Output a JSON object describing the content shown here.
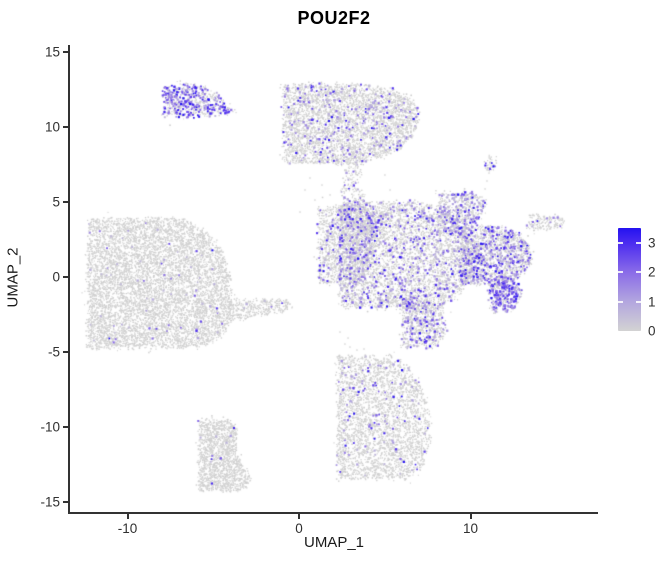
{
  "chart_data": {
    "type": "scatter",
    "title": "POU2F2",
    "xlabel": "UMAP_1",
    "ylabel": "UMAP_2",
    "xlim": [
      -13.4,
      17.4
    ],
    "ylim": [
      -15.7,
      15.5
    ],
    "grid": false,
    "background": "#ffffff",
    "x_ticks": [
      {
        "v": -10,
        "label": "-10"
      },
      {
        "v": 0,
        "label": "0"
      },
      {
        "v": 10,
        "label": "10"
      }
    ],
    "y_ticks": [
      {
        "v": 15,
        "label": "15"
      },
      {
        "v": 10,
        "label": "10"
      },
      {
        "v": 5,
        "label": "5"
      },
      {
        "v": 0,
        "label": "0"
      },
      {
        "v": -5,
        "label": "-5"
      },
      {
        "v": -10,
        "label": "-10"
      },
      {
        "v": -15,
        "label": "-15"
      }
    ],
    "legend_position": "right",
    "colorbar": {
      "min": 0,
      "max": 3.5,
      "tick_values": [
        0,
        1,
        2,
        3
      ],
      "tick_labels": [
        "0",
        "1",
        "2",
        "3"
      ],
      "low_color": "#D3D3D3",
      "high_color": "#2412F0",
      "ramp": [
        [
          0.0,
          "#D3D3D3"
        ],
        [
          0.286,
          "#B2A5DF"
        ],
        [
          0.571,
          "#8A6CE8"
        ],
        [
          0.857,
          "#4A2BF0"
        ],
        [
          1.0,
          "#2412F0"
        ]
      ]
    },
    "clusters": [
      {
        "name": "top-left-island-high-expression",
        "n": 620,
        "expr_frac": 0.45,
        "expr_pow": 0.9,
        "outline": [
          [
            -7.93,
            11.93
          ],
          [
            -7.41,
            12.53
          ],
          [
            -6.24,
            12.8
          ],
          [
            -5.19,
            12.47
          ],
          [
            -4.61,
            11.87
          ],
          [
            -3.72,
            11.05
          ],
          [
            -4.37,
            10.87
          ],
          [
            -5.54,
            10.73
          ],
          [
            -6.71,
            10.87
          ],
          [
            -7.7,
            11.33
          ]
        ]
      },
      {
        "name": "top-middle-large",
        "n": 3800,
        "expr_frac": 0.085,
        "expr_pow": 1.6,
        "outline": [
          [
            -0.93,
            10.6
          ],
          [
            -0.52,
            11.6
          ],
          [
            0.52,
            12.27
          ],
          [
            1.92,
            12.73
          ],
          [
            3.44,
            12.87
          ],
          [
            4.84,
            12.73
          ],
          [
            5.89,
            12.33
          ],
          [
            6.65,
            11.73
          ],
          [
            7.06,
            11.0
          ],
          [
            6.94,
            10.07
          ],
          [
            6.47,
            9.27
          ],
          [
            5.77,
            8.47
          ],
          [
            4.55,
            7.87
          ],
          [
            3.21,
            7.6
          ],
          [
            1.81,
            7.67
          ],
          [
            0.76,
            8.07
          ],
          [
            -0.23,
            8.73
          ],
          [
            -0.82,
            9.8
          ]
        ]
      },
      {
        "name": "neck-bridge",
        "n": 380,
        "expr_frac": 0.12,
        "expr_pow": 1.6,
        "outline": [
          [
            2.51,
            8.33
          ],
          [
            4.02,
            8.13
          ],
          [
            3.56,
            6.13
          ],
          [
            4.14,
            4.13
          ],
          [
            4.61,
            2.47
          ],
          [
            3.27,
            2.47
          ],
          [
            3.09,
            4.8
          ],
          [
            2.86,
            6.8
          ]
        ]
      },
      {
        "name": "central-left-lobe",
        "n": 1400,
        "expr_frac": 0.12,
        "expr_pow": 1.6,
        "outline": [
          [
            1.11,
            1.67
          ],
          [
            1.81,
            3.0
          ],
          [
            2.86,
            4.07
          ],
          [
            4.02,
            4.67
          ],
          [
            5.07,
            4.33
          ],
          [
            4.72,
            2.47
          ],
          [
            4.26,
            1.0
          ],
          [
            3.44,
            -0.4
          ],
          [
            2.39,
            -0.27
          ],
          [
            1.57,
            0.6
          ]
        ]
      },
      {
        "name": "central-main-body",
        "n": 4200,
        "expr_frac": 0.15,
        "expr_pow": 1.7,
        "outline": [
          [
            2.68,
            3.27
          ],
          [
            4.72,
            4.6
          ],
          [
            7.06,
            5.0
          ],
          [
            8.92,
            4.33
          ],
          [
            9.85,
            3.27
          ],
          [
            10.44,
            1.93
          ],
          [
            10.2,
            0.33
          ],
          [
            9.39,
            -1.0
          ],
          [
            8.34,
            -2.07
          ],
          [
            7.06,
            -1.93
          ],
          [
            5.77,
            -1.53
          ],
          [
            4.37,
            -1.13
          ],
          [
            3.32,
            -0.73
          ],
          [
            2.62,
            1.0
          ],
          [
            2.39,
            2.33
          ]
        ]
      },
      {
        "name": "central-bottom-lobe",
        "n": 750,
        "expr_frac": 0.2,
        "expr_pow": 1.5,
        "outline": [
          [
            6.01,
            -1.67
          ],
          [
            7.52,
            -1.4
          ],
          [
            8.4,
            -2.33
          ],
          [
            8.57,
            -3.53
          ],
          [
            8.05,
            -4.67
          ],
          [
            7.52,
            -4.47
          ],
          [
            6.71,
            -3.53
          ],
          [
            6.12,
            -2.47
          ]
        ]
      },
      {
        "name": "central-right-lobe",
        "n": 1550,
        "expr_frac": 0.28,
        "expr_pow": 1.5,
        "outline": [
          [
            9.5,
            2.6
          ],
          [
            10.55,
            3.27
          ],
          [
            11.72,
            3.4
          ],
          [
            12.65,
            3.0
          ],
          [
            13.35,
            2.2
          ],
          [
            13.59,
            1.27
          ],
          [
            13.24,
            0.33
          ],
          [
            12.54,
            -0.2
          ],
          [
            11.72,
            -0.47
          ],
          [
            10.9,
            -0.33
          ],
          [
            9.97,
            0.33
          ],
          [
            9.39,
            1.47
          ]
        ]
      },
      {
        "name": "right-lobe-hot-tip",
        "n": 360,
        "expr_frac": 0.55,
        "expr_pow": 1.0,
        "outline": [
          [
            11.37,
            -0.2
          ],
          [
            12.3,
            -0.07
          ],
          [
            12.89,
            -0.6
          ],
          [
            13.0,
            -1.4
          ],
          [
            12.54,
            -2.07
          ],
          [
            11.84,
            -2.33
          ],
          [
            11.37,
            -1.53
          ],
          [
            11.14,
            -0.73
          ]
        ]
      },
      {
        "name": "central-top-right-arm",
        "n": 560,
        "expr_frac": 0.3,
        "expr_pow": 1.5,
        "outline": [
          [
            8.1,
            4.33
          ],
          [
            8.92,
            5.13
          ],
          [
            9.85,
            5.6
          ],
          [
            10.55,
            5.4
          ],
          [
            11.02,
            4.8
          ],
          [
            10.55,
            3.93
          ],
          [
            9.85,
            3.27
          ],
          [
            8.92,
            2.8
          ],
          [
            8.22,
            3.27
          ]
        ]
      },
      {
        "name": "far-right-island",
        "n": 150,
        "expr_frac": 0.16,
        "expr_pow": 1.5,
        "outline": [
          [
            13.35,
            3.67
          ],
          [
            14.05,
            4.13
          ],
          [
            14.99,
            4.13
          ],
          [
            15.57,
            3.8
          ],
          [
            15.22,
            3.27
          ],
          [
            14.34,
            3.13
          ],
          [
            13.64,
            3.27
          ]
        ]
      },
      {
        "name": "tiny-top-right-speck",
        "n": 42,
        "expr_frac": 0.12,
        "expr_pow": 1.3,
        "outline": [
          [
            10.9,
            7.6
          ],
          [
            11.0,
            7.95
          ],
          [
            11.25,
            8.1
          ],
          [
            11.5,
            7.95
          ],
          [
            11.6,
            7.6
          ],
          [
            11.5,
            7.25
          ],
          [
            11.25,
            7.1
          ],
          [
            11.0,
            7.25
          ]
        ]
      },
      {
        "name": "left-large-fan",
        "n": 7000,
        "expr_frac": 0.013,
        "expr_pow": 2.5,
        "outline": [
          [
            -7.23,
            3.93
          ],
          [
            -8.57,
            3.4
          ],
          [
            -9.97,
            2.6
          ],
          [
            -11.14,
            1.53
          ],
          [
            -11.9,
            0.33
          ],
          [
            -12.3,
            -1.0
          ],
          [
            -12.07,
            -2.07
          ],
          [
            -11.37,
            -2.87
          ],
          [
            -10.2,
            -3.67
          ],
          [
            -8.69,
            -4.33
          ],
          [
            -6.94,
            -4.73
          ],
          [
            -5.36,
            -4.53
          ],
          [
            -4.37,
            -3.87
          ],
          [
            -3.97,
            -2.87
          ],
          [
            -3.85,
            -1.4
          ],
          [
            -4.08,
            0.47
          ],
          [
            -4.61,
            2.07
          ],
          [
            -5.6,
            3.13
          ],
          [
            -6.53,
            3.73
          ]
        ]
      },
      {
        "name": "left-fan-tail",
        "n": 330,
        "expr_frac": 0.03,
        "expr_pow": 2.0,
        "outline": [
          [
            -4.14,
            -2.33
          ],
          [
            -2.97,
            -2.07
          ],
          [
            -1.81,
            -1.87
          ],
          [
            -0.64,
            -1.53
          ],
          [
            -0.35,
            -1.93
          ],
          [
            -0.93,
            -2.33
          ],
          [
            -2.16,
            -2.6
          ],
          [
            -3.32,
            -2.8
          ],
          [
            -4.02,
            -3.0
          ]
        ]
      },
      {
        "name": "bottom-middle-pear",
        "n": 3200,
        "expr_frac": 0.04,
        "expr_pow": 1.5,
        "outline": [
          [
            4.14,
            -5.27
          ],
          [
            3.21,
            -5.8
          ],
          [
            2.57,
            -6.73
          ],
          [
            2.22,
            -7.93
          ],
          [
            2.33,
            -9.13
          ],
          [
            2.8,
            -10.07
          ],
          [
            3.44,
            -10.47
          ],
          [
            4.02,
            -10.87
          ],
          [
            4.14,
            -11.67
          ],
          [
            4.61,
            -12.53
          ],
          [
            5.42,
            -13.33
          ],
          [
            6.36,
            -13.47
          ],
          [
            7.06,
            -12.87
          ],
          [
            7.46,
            -11.87
          ],
          [
            7.64,
            -10.6
          ],
          [
            7.58,
            -9.2
          ],
          [
            7.35,
            -7.87
          ],
          [
            6.82,
            -6.6
          ],
          [
            6.12,
            -5.73
          ],
          [
            5.31,
            -5.27
          ]
        ]
      },
      {
        "name": "bottom-left-boot",
        "n": 1500,
        "expr_frac": 0.006,
        "expr_pow": 2.0,
        "outline": [
          [
            -4.9,
            -9.53
          ],
          [
            -5.48,
            -10.07
          ],
          [
            -5.83,
            -11.0
          ],
          [
            -5.77,
            -11.93
          ],
          [
            -5.42,
            -12.87
          ],
          [
            -4.96,
            -13.53
          ],
          [
            -4.26,
            -14.13
          ],
          [
            -3.56,
            -14.27
          ],
          [
            -2.97,
            -13.93
          ],
          [
            -2.86,
            -13.33
          ],
          [
            -3.27,
            -12.6
          ],
          [
            -3.62,
            -11.8
          ],
          [
            -3.67,
            -11.0
          ],
          [
            -3.56,
            -10.2
          ],
          [
            -4.02,
            -9.6
          ]
        ]
      }
    ],
    "singles": [
      [
        10.32,
        4.27,
        0
      ],
      [
        10.5,
        4.8,
        0
      ],
      [
        10.67,
        5.33,
        0
      ],
      [
        10.85,
        5.87,
        0
      ],
      [
        10.96,
        6.4,
        0
      ],
      [
        11.08,
        6.93,
        0
      ],
      [
        11.2,
        7.4,
        0
      ],
      [
        11.14,
        7.2,
        2.5
      ],
      [
        0.35,
        5.8,
        0
      ],
      [
        0.93,
        5.13,
        0
      ],
      [
        0.06,
        4.33,
        0
      ],
      [
        1.34,
        6.13,
        0
      ],
      [
        1.81,
        5.47,
        0
      ],
      [
        2.16,
        4.8,
        0
      ],
      [
        0.64,
        6.6,
        0
      ],
      [
        2.68,
        7.13,
        0
      ],
      [
        3.27,
        8.47,
        0
      ],
      [
        5.01,
        6.8,
        0
      ],
      [
        5.31,
        5.8,
        0
      ],
      [
        4.84,
        4.8,
        0
      ],
      [
        2.97,
        -4.67,
        0
      ],
      [
        3.38,
        -4.87,
        0
      ],
      [
        3.79,
        -4.8,
        0
      ],
      [
        2.68,
        -4.47,
        0
      ],
      [
        2.39,
        -3.67,
        0
      ],
      [
        2.86,
        -4.07,
        0
      ],
      [
        -3.79,
        -10.07,
        3.0
      ],
      [
        13.64,
        3.67,
        2.0
      ]
    ]
  }
}
